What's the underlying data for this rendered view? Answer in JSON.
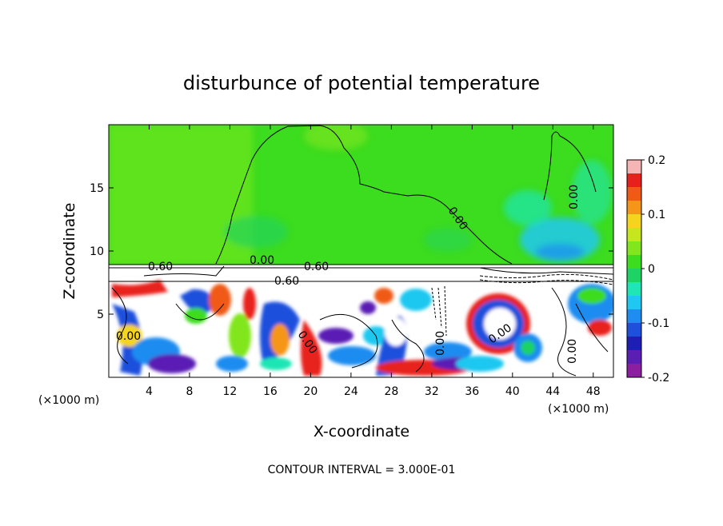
{
  "chart_data": {
    "type": "heatmap",
    "title": "disturbunce of potential temperature",
    "xlabel": "X-coordinate",
    "ylabel": "Z-coordinate",
    "x_unit": "(×1000 m)",
    "x_unit_right": "(×1000 m)",
    "xlim": [
      0,
      50
    ],
    "ylim": [
      0,
      20
    ],
    "xticks": [
      "4",
      "8",
      "12",
      "16",
      "20",
      "24",
      "28",
      "32",
      "36",
      "40",
      "44",
      "48"
    ],
    "yticks": [
      "5",
      "10",
      "15"
    ],
    "colorbar": {
      "ticks": [
        "0.2",
        "0.1",
        "0",
        "-0.1",
        "-0.2"
      ],
      "range": [
        -0.2,
        0.2
      ],
      "colors": [
        "#f5b5b5",
        "#e8201c",
        "#f05a14",
        "#f59618",
        "#f5d41e",
        "#c8e61e",
        "#82e61e",
        "#3cdc1e",
        "#1ed264",
        "#1ee6b4",
        "#1ec8f0",
        "#1e8cf0",
        "#1e50dc",
        "#1e1eb4",
        "#5a1eb4",
        "#8c1ea0"
      ]
    },
    "contour_labels": [
      "0.60",
      "0.00",
      "0.60",
      "0.60",
      "0.00",
      "0.00",
      "0.00",
      "0.00",
      "0.00",
      "0.00",
      "0.00"
    ],
    "footer": "CONTOUR INTERVAL = 3.000E-01"
  }
}
